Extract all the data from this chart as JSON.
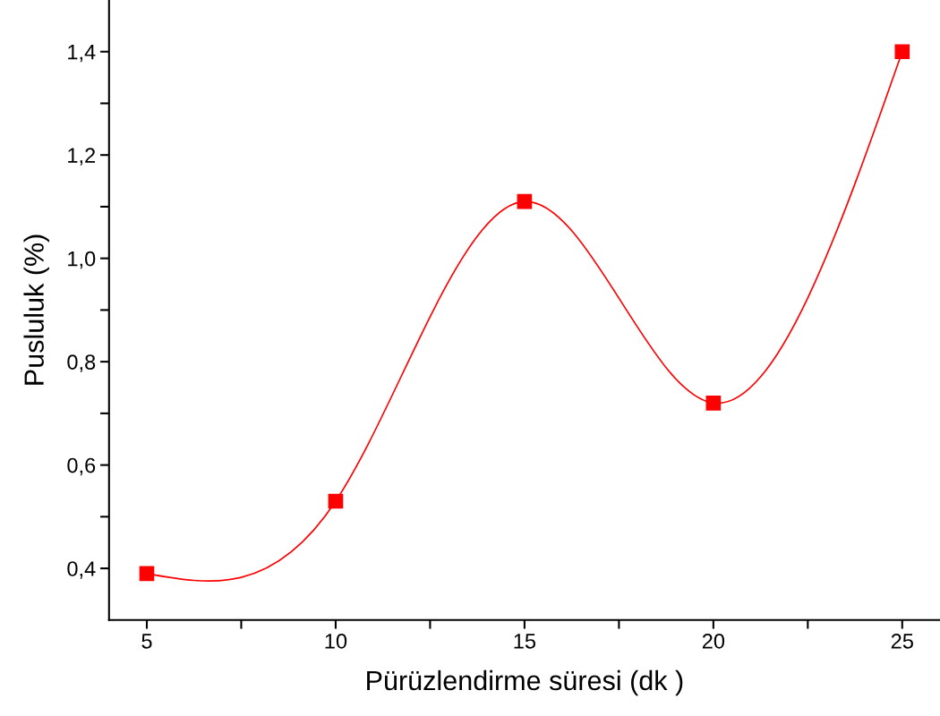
{
  "chart_data": {
    "type": "line",
    "xlabel": "Pürüzlendirme süresi (dk )",
    "ylabel": "Pusluluk (%)",
    "x": [
      5,
      10,
      15,
      20,
      25
    ],
    "series": [
      {
        "color": "#ff0000",
        "values": [
          0.39,
          0.53,
          1.11,
          0.72,
          1.4
        ]
      }
    ],
    "marker": "square",
    "line_style": "solid",
    "grid": false,
    "legend": false,
    "xlim": [
      4,
      26
    ],
    "ylim": [
      0.3,
      1.5
    ],
    "xticks": [
      5,
      {
        "value": 7.5,
        "label": null
      },
      10,
      {
        "value": 12.5,
        "label": null
      },
      15,
      {
        "value": 17.5,
        "label": null
      },
      20,
      {
        "value": 22.5,
        "label": null
      },
      25
    ],
    "yticks": [
      {
        "value": 0.4,
        "label": "0,4"
      },
      {
        "value": 0.5,
        "label": null
      },
      {
        "value": 0.6,
        "label": "0,6"
      },
      {
        "value": 0.7,
        "label": null
      },
      {
        "value": 0.8,
        "label": "0,8"
      },
      {
        "value": 0.9,
        "label": null
      },
      {
        "value": 1.0,
        "label": "1,0"
      },
      {
        "value": 1.1,
        "label": null
      },
      {
        "value": 1.2,
        "label": "1,2"
      },
      {
        "value": 1.3,
        "label": null
      },
      {
        "value": 1.4,
        "label": "1,4"
      }
    ]
  }
}
